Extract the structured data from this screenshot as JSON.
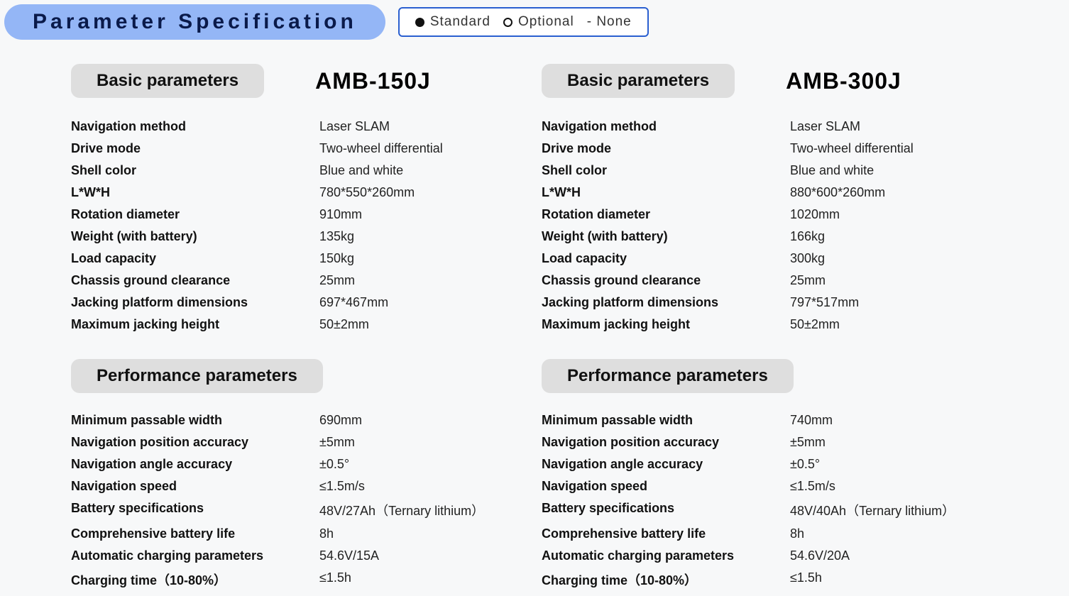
{
  "header": {
    "title": "Parameter Specification",
    "legend": {
      "standard": "Standard",
      "optional": "Optional",
      "none": "-  None"
    }
  },
  "section_labels": {
    "basic": "Basic parameters",
    "performance": "Performance parameters"
  },
  "colors": {
    "title_pill_bg": "#94b6f6",
    "title_text": "#0a1a4a",
    "legend_border": "#2a5fd0",
    "section_pill_bg": "#dedede",
    "page_bg": "#f7f8f9"
  },
  "products": [
    {
      "model": "AMB-150J",
      "basic": [
        {
          "label": "Navigation method",
          "value": "Laser SLAM"
        },
        {
          "label": "Drive mode",
          "value": "Two-wheel differential"
        },
        {
          "label": "Shell color",
          "value": "Blue and white"
        },
        {
          "label": "L*W*H",
          "value": "780*550*260mm"
        },
        {
          "label": "Rotation diameter",
          "value": "910mm"
        },
        {
          "label": "Weight (with battery)",
          "value": "135kg"
        },
        {
          "label": "Load capacity",
          "value": "150kg"
        },
        {
          "label": "Chassis ground clearance",
          "value": "25mm"
        },
        {
          "label": "Jacking platform dimensions",
          "value": "697*467mm"
        },
        {
          "label": "Maximum jacking height",
          "value": "50±2mm"
        }
      ],
      "performance": [
        {
          "label": "Minimum passable width",
          "value": "690mm"
        },
        {
          "label": "Navigation position accuracy",
          "value": "±5mm"
        },
        {
          "label": "Navigation angle accuracy",
          "value": "±0.5°"
        },
        {
          "label": "Navigation speed",
          "value": "≤1.5m/s"
        },
        {
          "label": "Battery specifications",
          "value": "48V/27Ah（Ternary lithium）"
        },
        {
          "label": "Comprehensive battery life",
          "value": "8h"
        },
        {
          "label": "Automatic charging parameters",
          "value": "54.6V/15A"
        },
        {
          "label": "Charging time（10-80%）",
          "value": "≤1.5h"
        }
      ]
    },
    {
      "model": "AMB-300J",
      "basic": [
        {
          "label": "Navigation method",
          "value": "Laser SLAM"
        },
        {
          "label": "Drive mode",
          "value": "Two-wheel differential"
        },
        {
          "label": "Shell color",
          "value": "Blue and white"
        },
        {
          "label": "L*W*H",
          "value": "880*600*260mm"
        },
        {
          "label": "Rotation diameter",
          "value": "1020mm"
        },
        {
          "label": "Weight (with battery)",
          "value": "166kg"
        },
        {
          "label": "Load capacity",
          "value": "300kg"
        },
        {
          "label": "Chassis ground clearance",
          "value": "25mm"
        },
        {
          "label": "Jacking platform dimensions",
          "value": "797*517mm"
        },
        {
          "label": "Maximum jacking height",
          "value": "50±2mm"
        }
      ],
      "performance": [
        {
          "label": "Minimum passable width",
          "value": "740mm"
        },
        {
          "label": "Navigation position accuracy",
          "value": "±5mm"
        },
        {
          "label": "Navigation angle accuracy",
          "value": "±0.5°"
        },
        {
          "label": "Navigation speed",
          "value": "≤1.5m/s"
        },
        {
          "label": "Battery specifications",
          "value": "48V/40Ah（Ternary lithium）"
        },
        {
          "label": "Comprehensive battery life",
          "value": "8h"
        },
        {
          "label": "Automatic charging parameters",
          "value": "54.6V/20A"
        },
        {
          "label": "Charging time（10-80%）",
          "value": "≤1.5h"
        }
      ]
    }
  ]
}
